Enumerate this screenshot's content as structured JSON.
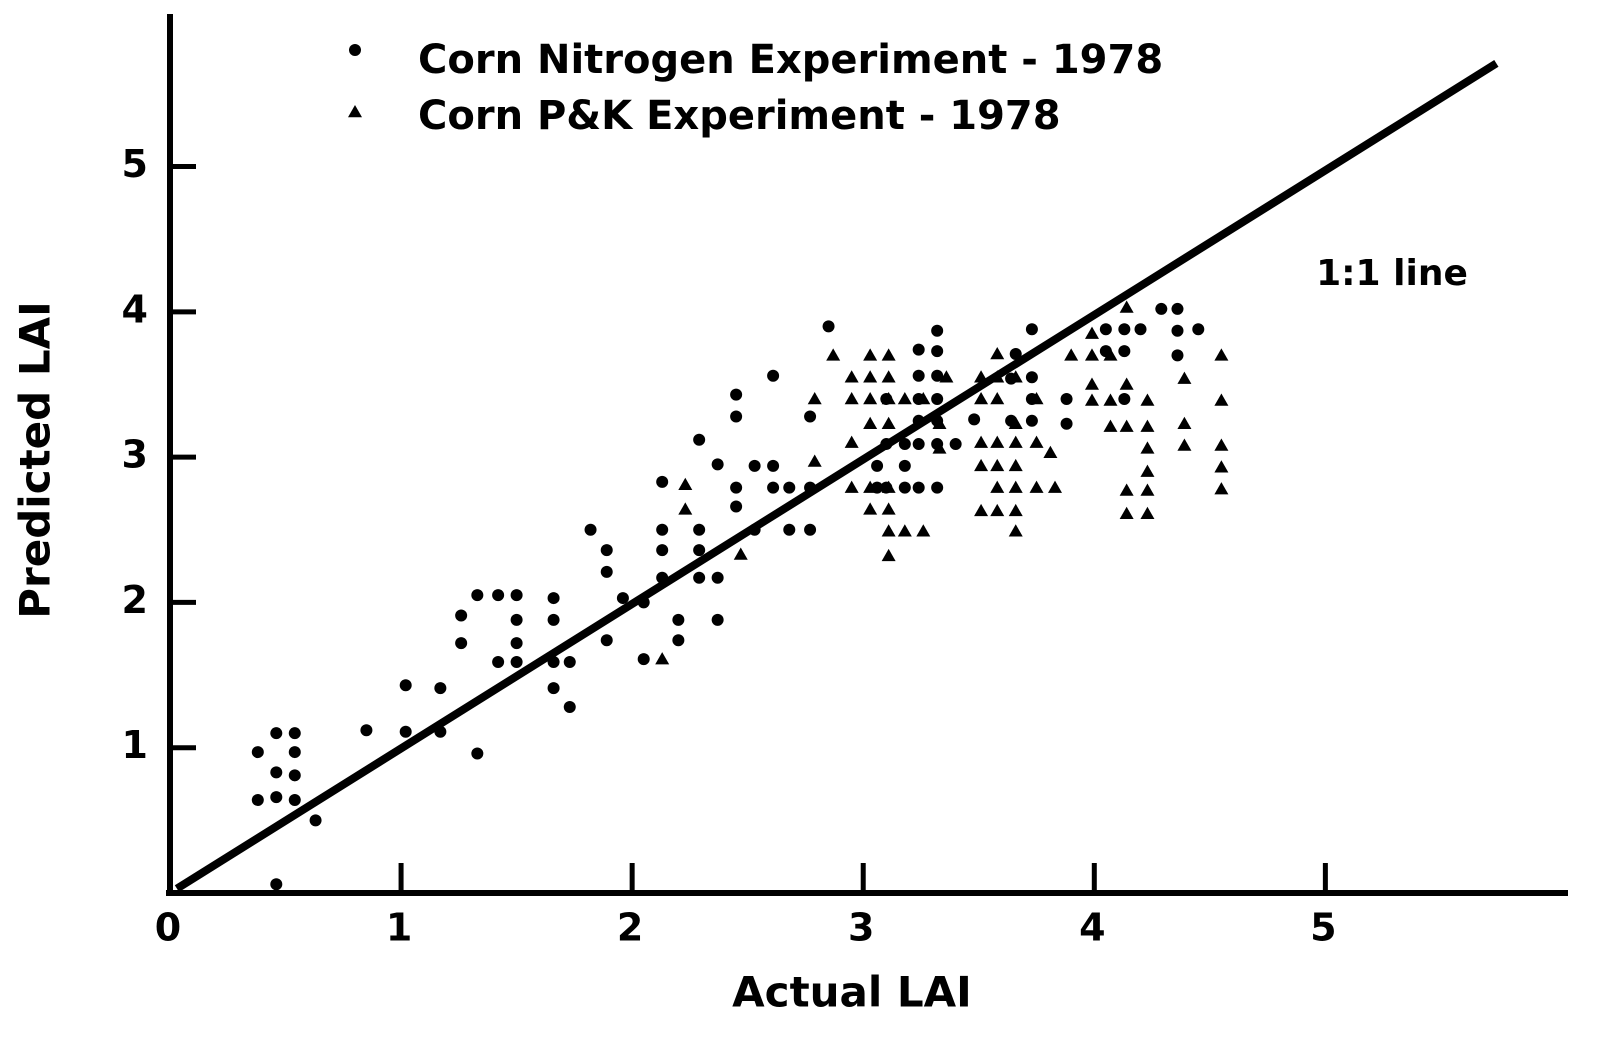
{
  "chart_data": {
    "type": "scatter",
    "xlabel": "Actual LAI",
    "ylabel": "Predicted LAI",
    "xlim": [
      0,
      6.05
    ],
    "ylim": [
      0,
      6.05
    ],
    "xticks": [
      0,
      1,
      2,
      3,
      4,
      5
    ],
    "yticks": [
      1,
      2,
      3,
      4,
      5
    ],
    "legend": "top",
    "grid": false,
    "series": [
      {
        "name": "Corn Nitrogen Experiment - 1978",
        "marker": "circle",
        "color": "#000000",
        "x": [
          0.38,
          0.38,
          0.46,
          0.46,
          0.46,
          0.54,
          0.54,
          0.54,
          0.54,
          0.63,
          0.46,
          0.85,
          1.02,
          1.02,
          1.17,
          1.17,
          1.33,
          1.26,
          1.26,
          1.33,
          1.42,
          1.5,
          1.5,
          1.5,
          1.42,
          1.5,
          1.66,
          1.66,
          1.66,
          1.66,
          1.73,
          1.73,
          1.82,
          1.89,
          1.89,
          1.89,
          1.96,
          2.05,
          2.05,
          2.13,
          2.13,
          2.13,
          2.13,
          2.2,
          2.2,
          2.29,
          2.29,
          2.29,
          2.29,
          2.37,
          2.37,
          2.37,
          2.45,
          2.45,
          2.45,
          2.45,
          2.53,
          2.53,
          2.61,
          2.61,
          2.61,
          2.68,
          2.68,
          2.77,
          2.77,
          2.77,
          2.85,
          3.06,
          3.06,
          3.1,
          3.1,
          3.1,
          3.18,
          3.18,
          3.18,
          3.24,
          3.24,
          3.24,
          3.24,
          3.24,
          3.24,
          3.32,
          3.32,
          3.32,
          3.32,
          3.32,
          3.32,
          3.32,
          3.4,
          3.48,
          3.64,
          3.64,
          3.73,
          3.73,
          3.73,
          3.73,
          3.88,
          3.88,
          4.05,
          4.05,
          4.13,
          4.13,
          4.13,
          4.2,
          4.29,
          4.36,
          4.36,
          4.36,
          4.45,
          3.66
        ],
        "y": [
          0.97,
          0.64,
          1.1,
          0.83,
          0.66,
          1.1,
          0.97,
          0.81,
          0.64,
          0.5,
          0.06,
          1.12,
          1.43,
          1.11,
          1.41,
          1.11,
          0.96,
          1.91,
          1.72,
          2.05,
          2.05,
          2.05,
          1.88,
          1.72,
          1.59,
          1.59,
          2.03,
          1.88,
          1.59,
          1.41,
          1.59,
          1.28,
          2.5,
          2.36,
          2.21,
          1.74,
          2.03,
          2.0,
          1.61,
          2.83,
          2.5,
          2.36,
          2.17,
          1.88,
          1.74,
          3.12,
          2.5,
          2.36,
          2.17,
          2.95,
          2.17,
          1.88,
          3.43,
          3.28,
          2.79,
          2.66,
          2.94,
          2.5,
          2.94,
          3.56,
          2.79,
          2.79,
          2.5,
          2.5,
          3.28,
          2.79,
          3.9,
          2.94,
          2.79,
          3.4,
          3.09,
          2.79,
          3.09,
          2.94,
          2.79,
          3.74,
          3.56,
          3.4,
          3.25,
          3.09,
          2.79,
          3.87,
          3.73,
          3.56,
          3.4,
          3.25,
          3.09,
          2.79,
          3.09,
          3.26,
          3.54,
          3.25,
          3.88,
          3.55,
          3.4,
          3.25,
          3.4,
          3.23,
          3.88,
          3.73,
          3.88,
          3.73,
          3.4,
          3.88,
          4.02,
          4.02,
          3.87,
          3.7,
          3.88,
          3.71
        ]
      },
      {
        "name": "Corn P&K Experiment - 1978",
        "marker": "triangle",
        "color": "#000000",
        "x": [
          2.13,
          2.23,
          2.23,
          2.47,
          2.79,
          2.79,
          2.87,
          2.95,
          2.95,
          2.95,
          2.95,
          3.03,
          3.03,
          3.03,
          3.03,
          3.03,
          3.03,
          3.11,
          3.11,
          3.11,
          3.11,
          3.11,
          3.11,
          3.11,
          3.11,
          3.18,
          3.18,
          3.26,
          3.26,
          3.33,
          3.33,
          3.36,
          3.51,
          3.51,
          3.51,
          3.51,
          3.51,
          3.58,
          3.58,
          3.58,
          3.58,
          3.58,
          3.58,
          3.58,
          3.66,
          3.66,
          3.66,
          3.66,
          3.66,
          3.66,
          3.66,
          3.75,
          3.75,
          3.75,
          3.81,
          3.83,
          3.9,
          3.99,
          3.99,
          3.99,
          3.99,
          4.07,
          4.07,
          4.07,
          4.14,
          4.14,
          4.14,
          4.14,
          4.14,
          4.23,
          4.23,
          4.23,
          4.23,
          4.23,
          4.23,
          4.39,
          4.39,
          4.39,
          4.55,
          4.55,
          4.55,
          4.55,
          4.55
        ],
        "y": [
          1.61,
          2.81,
          2.64,
          2.33,
          3.4,
          2.97,
          3.7,
          3.55,
          3.4,
          3.1,
          2.79,
          3.7,
          3.55,
          3.4,
          3.23,
          2.79,
          2.64,
          3.7,
          3.55,
          3.4,
          3.23,
          2.79,
          2.64,
          2.49,
          2.32,
          3.4,
          2.49,
          3.4,
          2.49,
          3.23,
          3.06,
          3.55,
          3.55,
          3.4,
          3.1,
          2.94,
          2.63,
          3.71,
          3.55,
          3.4,
          3.1,
          2.94,
          2.79,
          2.63,
          3.55,
          3.23,
          3.1,
          2.94,
          2.79,
          2.63,
          2.49,
          3.4,
          3.1,
          2.79,
          3.03,
          2.79,
          3.7,
          3.85,
          3.7,
          3.5,
          3.39,
          3.7,
          3.39,
          3.21,
          4.03,
          3.5,
          3.21,
          2.77,
          2.61,
          3.39,
          3.21,
          3.06,
          2.9,
          2.77,
          2.61,
          3.54,
          3.23,
          3.08,
          3.7,
          3.39,
          3.08,
          2.93,
          2.78
        ]
      }
    ],
    "reference_line": {
      "label": "1:1 line",
      "color": "#000000",
      "x": [
        0.03,
        5.74
      ],
      "y": [
        0.03,
        5.71
      ]
    }
  }
}
